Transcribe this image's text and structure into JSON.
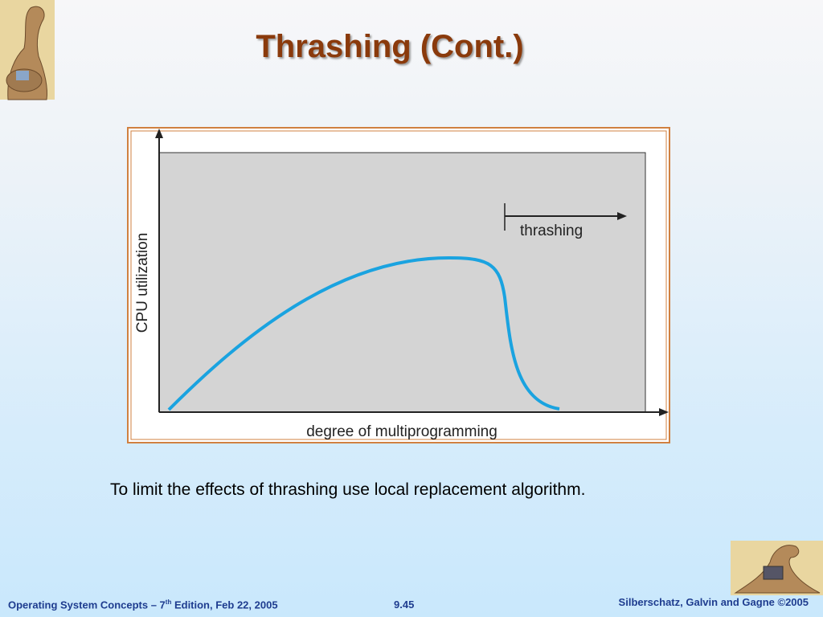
{
  "header": {
    "title": "Thrashing (Cont.)"
  },
  "diagram": {
    "y_axis_label": "CPU utilization",
    "x_axis_label": "degree of multiprogramming",
    "annotation": "thrashing"
  },
  "body": {
    "text": "To limit the effects of thrashing use local replacement algorithm."
  },
  "footer": {
    "left": [
      "Operating System Concepts – 7",
      "th",
      " Edition, Feb 22, 2005"
    ],
    "center": "9.45",
    "right": "Silberschatz, Galvin and Gagne ©2005"
  }
}
